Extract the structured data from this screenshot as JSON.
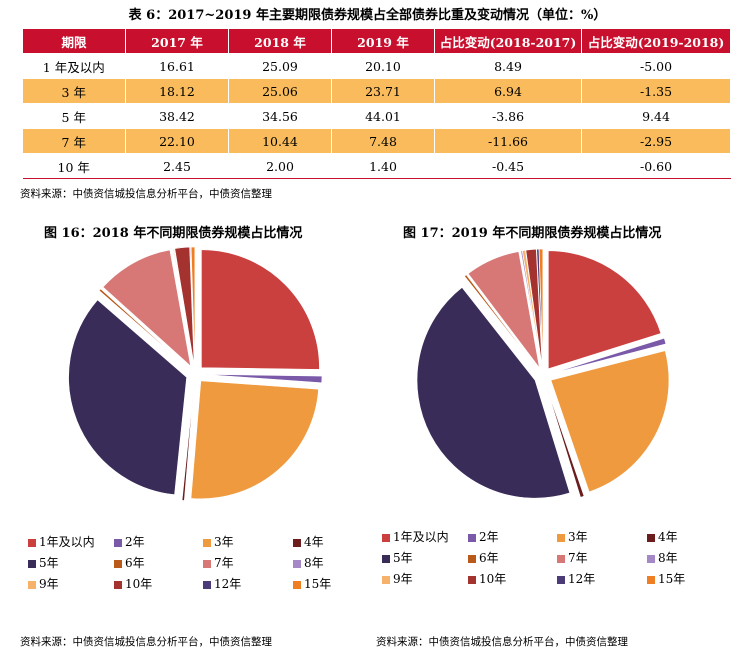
{
  "table": {
    "title": "表 6：2017~2019 年主要期限债券规模占全部债券比重及变动情况（单位：%）",
    "headers": [
      "期限",
      "2017 年",
      "2018 年",
      "2019 年",
      "占比变动(2018-2017)",
      "占比变动(2019-2018)"
    ],
    "rows": [
      [
        "1 年及以内",
        "16.61",
        "25.09",
        "20.10",
        "8.49",
        "-5.00"
      ],
      [
        "3 年",
        "18.12",
        "25.06",
        "23.71",
        "6.94",
        "-1.35"
      ],
      [
        "5 年",
        "38.42",
        "34.56",
        "44.01",
        "-3.86",
        "9.44"
      ],
      [
        "7 年",
        "22.10",
        "10.44",
        "7.48",
        "-11.66",
        "-2.95"
      ],
      [
        "10 年",
        "2.45",
        "2.00",
        "1.40",
        "-0.45",
        "-0.60"
      ]
    ],
    "source": "资料来源：中债资信城投信息分析平台，中债资信整理"
  },
  "colors": {
    "header_red": "#c8102e",
    "row_orange": "#f9bb5b",
    "series": {
      "1年及以内": "#c9403f",
      "2年": "#7a5aa8",
      "3年": "#ef9a3f",
      "4年": "#6b1d1d",
      "5年": "#3a2c58",
      "6年": "#b9591a",
      "7年": "#d77876",
      "8年": "#a589c6",
      "9年": "#f6b26b",
      "10年": "#a4322e",
      "12年": "#4b3b78",
      "15年": "#ef7f22"
    }
  },
  "chart_data": [
    {
      "type": "pie",
      "title": "图 16：2018 年不同期限债券规模占比情况",
      "categories": [
        "1年及以内",
        "2年",
        "3年",
        "4年",
        "5年",
        "6年",
        "7年",
        "8年",
        "9年",
        "10年",
        "12年",
        "15年"
      ],
      "values": [
        25.09,
        0.9,
        25.06,
        0.3,
        34.56,
        0.3,
        10.44,
        0.1,
        0.1,
        2.0,
        0.1,
        0.5
      ],
      "legend": "bottom",
      "source": "资料来源：中债资信城投信息分析平台，中债资信整理"
    },
    {
      "type": "pie",
      "title": "图 17：2019 年不同期限债券规模占比情况",
      "categories": [
        "1年及以内",
        "2年",
        "3年",
        "4年",
        "5年",
        "6年",
        "7年",
        "8年",
        "9年",
        "10年",
        "12年",
        "15年"
      ],
      "values": [
        20.1,
        0.8,
        23.71,
        0.5,
        44.01,
        0.3,
        7.48,
        0.2,
        0.4,
        1.4,
        0.3,
        0.5
      ],
      "legend": "bottom",
      "source": "资料来源：中债资信城投信息分析平台，中债资信整理"
    }
  ]
}
